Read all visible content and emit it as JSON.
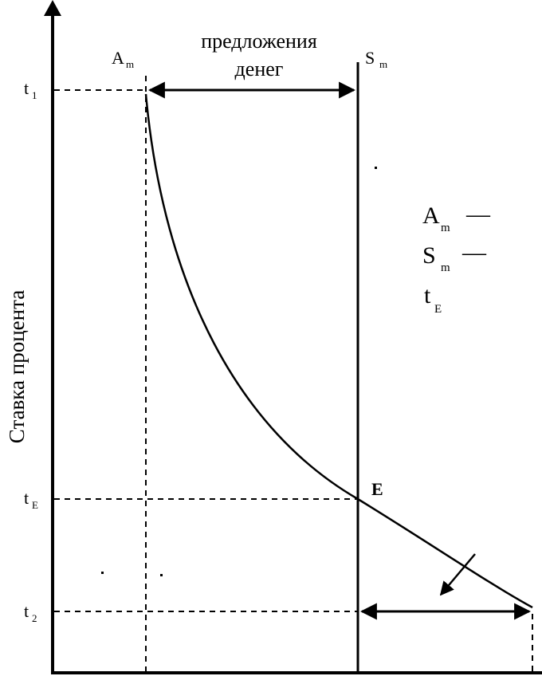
{
  "figure": {
    "y_axis_label": "Ставка процента",
    "top_caption_line1": "предложения",
    "top_caption_line2": "денег",
    "label_A": "A",
    "label_A_sub": "m",
    "label_S": "S",
    "label_S_sub": "m",
    "label_E": "E",
    "ticks": {
      "t1": {
        "main": "t",
        "sub": "1"
      },
      "tE": {
        "main": "t",
        "sub": "E"
      },
      "t2": {
        "main": "t",
        "sub": "2"
      }
    },
    "legend": [
      {
        "main": "A",
        "sub": "m",
        "dash": "—"
      },
      {
        "main": "S",
        "sub": "m",
        "dash": "—"
      },
      {
        "main": "t",
        "sub": "E",
        "dash": ""
      }
    ]
  }
}
